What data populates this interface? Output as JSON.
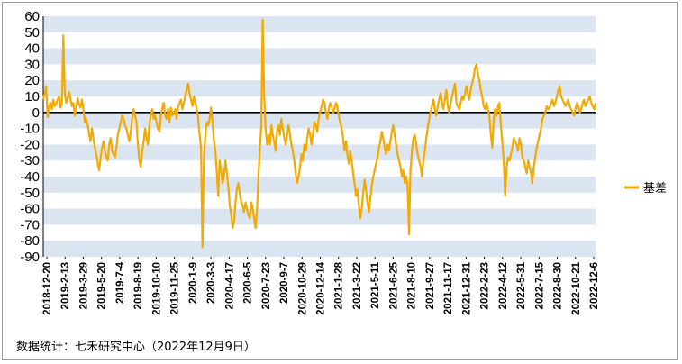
{
  "chart_data": {
    "type": "line",
    "title": "",
    "xlabel": "",
    "ylabel": "",
    "ylim": [
      -90,
      60
    ],
    "y_ticks": [
      60,
      50,
      40,
      30,
      20,
      10,
      0,
      -10,
      -20,
      -30,
      -40,
      -50,
      -60,
      -70,
      -80,
      -90
    ],
    "x_tick_labels": [
      "2018-12-20",
      "2019-2-13",
      "2019-3-29",
      "2019-5-20",
      "2019-7-4",
      "2019-8-19",
      "2019-10-10",
      "2019-11-25",
      "2020-1-9",
      "2020-3-3",
      "2020-4-17",
      "2020-6-5",
      "2020-7-23",
      "2020-9-7",
      "2020-10-29",
      "2020-12-14",
      "2021-1-28",
      "2021-3-22",
      "2021-5-11",
      "2021-6-25",
      "2021-8-10",
      "2021-9-27",
      "2021-11-17",
      "2021-12-31",
      "2022-2-23",
      "2022-4-12",
      "2022-5-31",
      "2022-7-15",
      "2022-8-30",
      "2022-10-21",
      "2022-12-6"
    ],
    "legend_position": "right",
    "grid": "horizontal bands",
    "band_color": "#dbe5f1",
    "series": [
      {
        "name": "基差",
        "color": "#f2a900",
        "values": [
          8,
          12,
          16,
          -3,
          3,
          6,
          2,
          8,
          4,
          5,
          8,
          10,
          3,
          6,
          48,
          12,
          6,
          9,
          13,
          8,
          4,
          6,
          -2,
          3,
          9,
          5,
          3,
          8,
          2,
          -6,
          -4,
          -8,
          -14,
          -18,
          -10,
          -16,
          -22,
          -26,
          -32,
          -36,
          -28,
          -22,
          -18,
          -24,
          -28,
          -30,
          -20,
          -16,
          -24,
          -26,
          -28,
          -22,
          -14,
          -10,
          -6,
          -2,
          -4,
          -8,
          -10,
          -14,
          -18,
          -12,
          -4,
          2,
          -2,
          -6,
          -20,
          -30,
          -34,
          -24,
          -18,
          -10,
          -16,
          -20,
          -8,
          -2,
          2,
          -4,
          -2,
          -6,
          -10,
          -12,
          -2,
          3,
          6,
          -2,
          -4,
          2,
          -6,
          3,
          -2,
          0,
          2,
          -4,
          4,
          6,
          8,
          2,
          6,
          10,
          14,
          18,
          12,
          8,
          4,
          10,
          6,
          2,
          -4,
          -14,
          -22,
          -84,
          -30,
          -14,
          -6,
          -8,
          -4,
          3,
          -6,
          -18,
          -24,
          -38,
          -52,
          -30,
          -36,
          -44,
          -40,
          -30,
          -38,
          -46,
          -58,
          -64,
          -72,
          -68,
          -56,
          -48,
          -44,
          -50,
          -56,
          -58,
          -62,
          -56,
          -60,
          -64,
          -66,
          -56,
          -60,
          -66,
          -72,
          -62,
          -40,
          -24,
          -8,
          58,
          10,
          -10,
          -20,
          -14,
          -20,
          -8,
          -14,
          -18,
          -24,
          -12,
          -8,
          -14,
          -4,
          -10,
          -16,
          -20,
          -14,
          -8,
          -14,
          -20,
          -24,
          -30,
          -38,
          -44,
          -40,
          -34,
          -26,
          -30,
          -20,
          -24,
          -16,
          -10,
          -14,
          -20,
          -14,
          -6,
          -8,
          -12,
          -4,
          0,
          4,
          8,
          6,
          0,
          -4,
          2,
          6,
          4,
          0,
          2,
          6,
          4,
          -2,
          -6,
          -10,
          -16,
          -24,
          -18,
          -26,
          -32,
          -24,
          -30,
          -38,
          -44,
          -52,
          -48,
          -58,
          -66,
          -60,
          -50,
          -42,
          -48,
          -56,
          -62,
          -54,
          -46,
          -40,
          -36,
          -32,
          -28,
          -22,
          -18,
          -12,
          -16,
          -22,
          -26,
          -20,
          -24,
          -18,
          -12,
          -8,
          -14,
          -20,
          -26,
          -30,
          -34,
          -40,
          -36,
          -44,
          -40,
          -46,
          -76,
          -36,
          -24,
          -16,
          -14,
          -20,
          -26,
          -30,
          -34,
          -40,
          -30,
          -24,
          -16,
          -10,
          -4,
          0,
          4,
          8,
          2,
          -2,
          4,
          8,
          12,
          6,
          2,
          8,
          14,
          4,
          0,
          6,
          10,
          14,
          18,
          6,
          4,
          2,
          6,
          10,
          8,
          12,
          16,
          12,
          8,
          14,
          18,
          22,
          28,
          30,
          24,
          20,
          14,
          10,
          4,
          2,
          6,
          2,
          -2,
          -14,
          -22,
          -4,
          2,
          -2,
          4,
          6,
          -8,
          -18,
          -30,
          -52,
          -34,
          -28,
          -30,
          -26,
          -22,
          -16,
          -18,
          -20,
          -24,
          -16,
          -20,
          -28,
          -30,
          -34,
          -38,
          -30,
          -34,
          -38,
          -44,
          -34,
          -28,
          -22,
          -18,
          -14,
          -10,
          -4,
          -2,
          0,
          4,
          2,
          3,
          6,
          8,
          4,
          6,
          10,
          14,
          16,
          10,
          8,
          6,
          4,
          6,
          8,
          4,
          2,
          0,
          -2,
          2,
          6,
          4,
          0,
          2,
          6,
          8,
          4,
          6,
          8,
          10,
          6,
          4,
          2,
          6
        ]
      }
    ]
  },
  "source_note": "数据统计：七禾研究中心（2022年12月9日）"
}
